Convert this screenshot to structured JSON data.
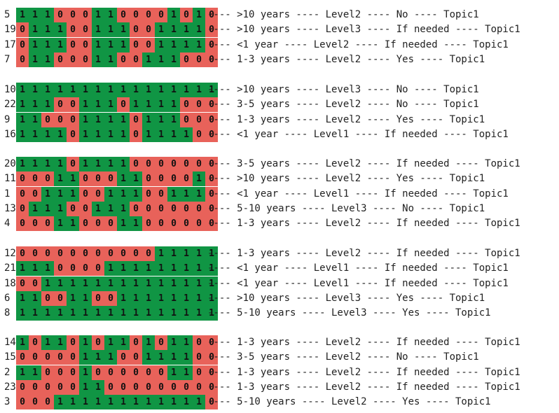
{
  "colors": {
    "one": "#109544",
    "zero": "#e8625a",
    "text": "#222222"
  },
  "groups": [
    {
      "rows": [
        {
          "id": "5",
          "bits": "1110001100001010",
          "text": "---- >10 years ---- Level2 ---- No ---- Topic1"
        },
        {
          "id": "19",
          "bits": "0111001110011110",
          "text": "---- >10 years ---- Level3 ---- If needed ---- Topic1"
        },
        {
          "id": "17",
          "bits": "0111001110011110",
          "text": "---- <1 year ---- Level2 ---- If needed ---- Topic1"
        },
        {
          "id": "7",
          "bits": "0110001100111000",
          "text": "---- 1-3 years ---- Level2 ---- Yes ---- Topic1"
        }
      ]
    },
    {
      "rows": [
        {
          "id": "10",
          "bits": "1111111111111111",
          "text": "---- >10 years ---- Level3 ---- No ---- Topic1"
        },
        {
          "id": "22",
          "bits": "1110011101111000",
          "text": "---- 3-5 years ---- Level2 ---- No ---- Topic1"
        },
        {
          "id": "9",
          "bits": "1100011110111000",
          "text": "---- 1-3 years ---- Level2 ---- Yes ---- Topic1"
        },
        {
          "id": "16",
          "bits": "1111011110111100",
          "text": "---- <1 year ---- Level1 ---- If needed ---- Topic1"
        }
      ]
    },
    {
      "rows": [
        {
          "id": "20",
          "bits": "1111011110000000",
          "text": "---- 3-5 years ---- Level2 ---- If needed ---- Topic1"
        },
        {
          "id": "11",
          "bits": "0001100011000010",
          "text": "---- >10 years ---- Level2 ---- Yes ---- Topic1"
        },
        {
          "id": "1",
          "bits": "0011100111001110",
          "text": "---- <1 year ---- Level1 ---- If needed ---- Topic1"
        },
        {
          "id": "13",
          "bits": "0111001110000000",
          "text": "---- 5-10 years ---- Level3 ---- No ---- Topic1"
        },
        {
          "id": "4",
          "bits": "0001100011000000",
          "text": "---- 1-3 years ---- Level2 ---- If needed ---- Topic1"
        }
      ]
    },
    {
      "rows": [
        {
          "id": "12",
          "bits": "0000000000011111",
          "text": "---- 1-3 years ---- Level2 ---- If needed ---- Topic1"
        },
        {
          "id": "21",
          "bits": "1110000111111111",
          "text": "---- <1 year ---- Level1 ---- If needed ---- Topic1"
        },
        {
          "id": "18",
          "bits": "0011111111111111",
          "text": "---- <1 year ---- Level1 ---- If needed ---- Topic1"
        },
        {
          "id": "6",
          "bits": "1100110011111111",
          "text": "---- >10 years ---- Level3 ---- Yes ---- Topic1"
        },
        {
          "id": "8",
          "bits": "1111111111111111",
          "text": "---- 5-10 years ---- Level3 ---- Yes ---- Topic1"
        }
      ]
    },
    {
      "rows": [
        {
          "id": "14",
          "bits": "1011010110101100",
          "text": "---- 1-3 years ---- Level2 ---- If needed ---- Topic1"
        },
        {
          "id": "15",
          "bits": "0000011100111100",
          "text": "---- 3-5 years ---- Level2 ---- No ---- Topic1"
        },
        {
          "id": "2",
          "bits": "1100010000001100",
          "text": "---- 1-3 years ---- Level2 ---- If needed ---- Topic1"
        },
        {
          "id": "23",
          "bits": "0000011000000000",
          "text": "---- 1-3 years ---- Level2 ---- If needed ---- Topic1"
        },
        {
          "id": "3",
          "bits": "0001111111111110",
          "text": "---- 5-10 years ---- Level2 ---- Yes ---- Topic1"
        }
      ]
    }
  ]
}
